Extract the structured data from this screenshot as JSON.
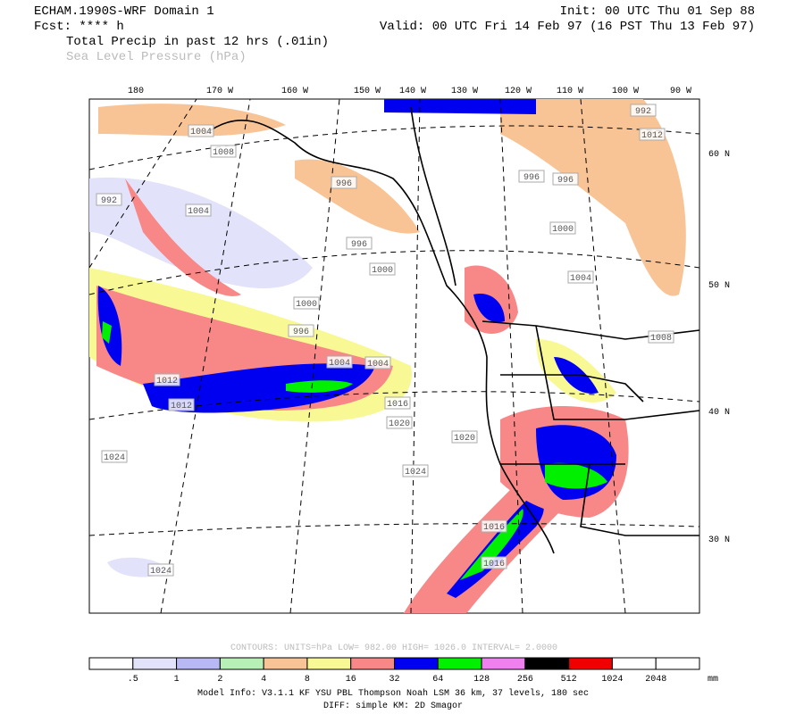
{
  "header": {
    "model": "ECHAM.1990S-WRF Domain 1",
    "forecast": "Fcst: **** h",
    "init": "Init: 00 UTC Thu 01 Sep 88",
    "valid": "Valid: 00 UTC Fri 14 Feb 97 (16 PST Thu 13 Feb 97)",
    "field1": "Total Precip in past 12 hrs (.01in)",
    "field2": "Sea Level Pressure (hPa)"
  },
  "map": {
    "lon_labels": [
      "180",
      "170 W",
      "160 W",
      "150 W",
      "140 W",
      "130 W",
      "120 W",
      "110 W",
      "100 W",
      "90 W"
    ],
    "lat_labels": [
      "60 N",
      "50 N",
      "40 N",
      "30 N"
    ],
    "contour_labels": [
      "1004",
      "1008",
      "992",
      "1004",
      "996",
      "996",
      "1000",
      "1000",
      "996",
      "1004",
      "1004",
      "1012",
      "1012",
      "1016",
      "1020",
      "1020",
      "1024",
      "1024",
      "1016",
      "1016",
      "1024",
      "1000",
      "1004",
      "1008",
      "992",
      "1012",
      "996",
      "996"
    ]
  },
  "footer": {
    "contours": "CONTOURS:  UNITS=hPa  LOW=  982.00      HIGH=  1026.0      INTERVAL=   2.0000",
    "colorbar": {
      "colors": [
        "#ffffff",
        "#e2e2fa",
        "#b8b8f4",
        "#b6f0b6",
        "#f8c496",
        "#f8f894",
        "#f88888",
        "#0000f0",
        "#00f000",
        "#f080f0",
        "#000000",
        "#f00000",
        "#ffffff",
        "#ffffff"
      ],
      "labels": [
        ".5",
        "1",
        "2",
        "4",
        "8",
        "16",
        "32",
        "64",
        "128",
        "256",
        "512",
        "1024",
        "2048"
      ],
      "unit": "mm"
    },
    "info1": "Model Info: V3.1.1    KF      YSU PBL  Thompson     Noah LSM  36 km,   37 levels,  180 sec",
    "info2": "DIFF: simple KM: 2D Smagor"
  }
}
